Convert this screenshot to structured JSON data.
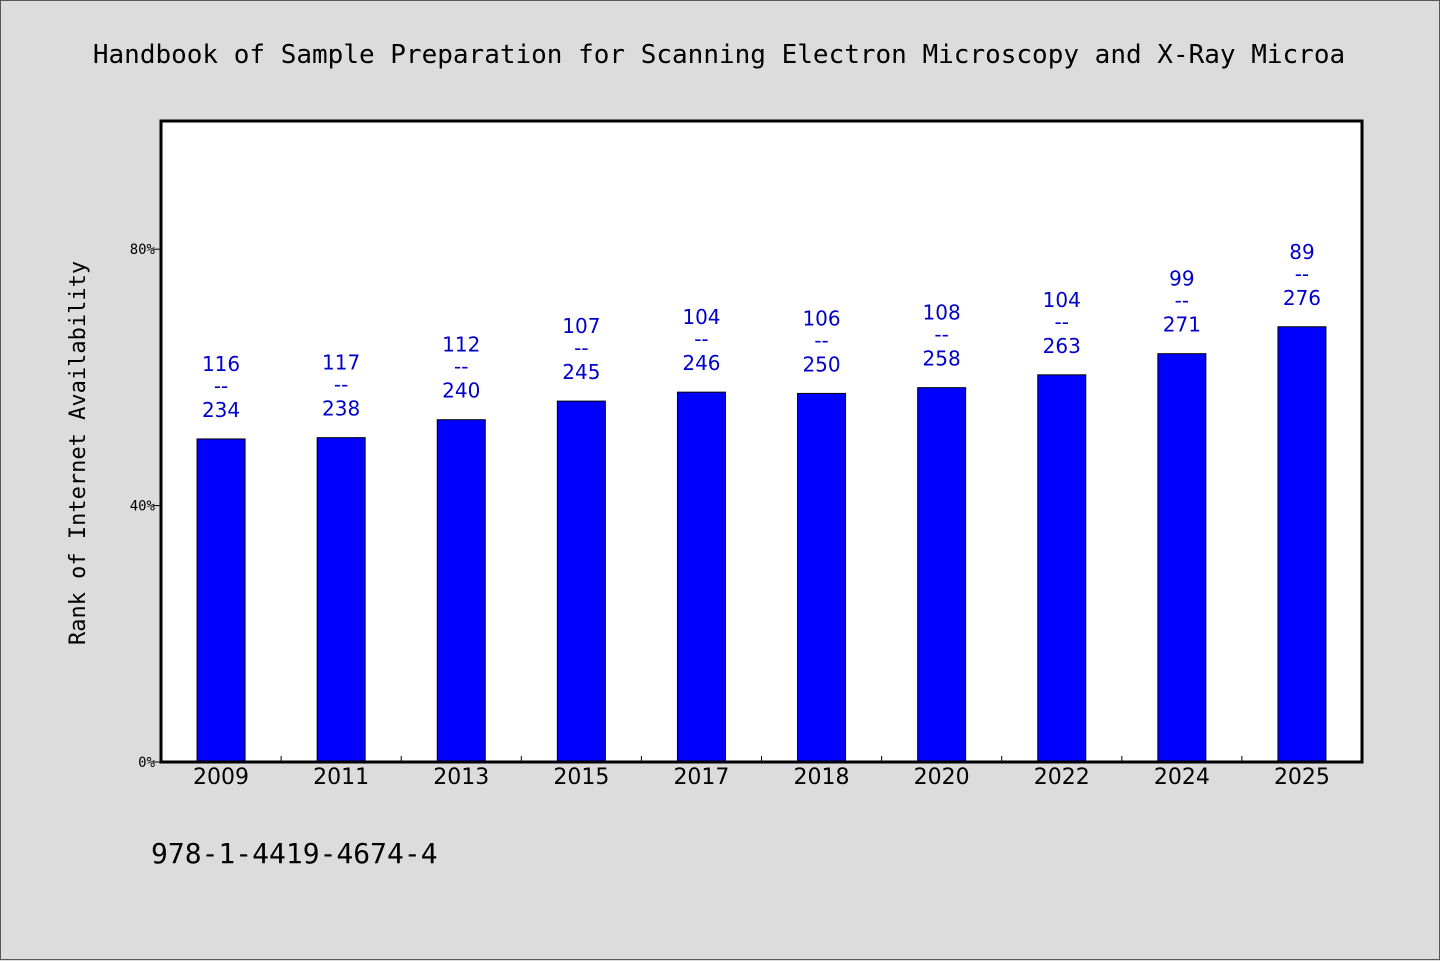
{
  "chart_data": {
    "type": "bar",
    "title": "Handbook of Sample Preparation for Scanning Electron Microscopy and X-Ray Microa",
    "ylabel": "Rank of Internet Availability",
    "xlabel": "",
    "ylim": [
      0,
      100
    ],
    "yticks": [
      0,
      40,
      80
    ],
    "ytick_labels": [
      "0%",
      "40%",
      "80%"
    ],
    "categories": [
      "2009",
      "2011",
      "2013",
      "2015",
      "2017",
      "2018",
      "2020",
      "2022",
      "2024",
      "2025"
    ],
    "values": [
      50.4,
      50.6,
      53.4,
      56.3,
      57.7,
      57.5,
      58.4,
      60.4,
      63.7,
      67.9
    ],
    "rank": [
      "116",
      "117",
      "112",
      "107",
      "104",
      "106",
      "108",
      "104",
      "99",
      "89"
    ],
    "total": [
      "234",
      "238",
      "240",
      "245",
      "246",
      "250",
      "258",
      "263",
      "271",
      "276"
    ],
    "separator": "--",
    "bar_color": "#0000ff",
    "label_color": "#0000cc",
    "grid": false,
    "legend": "none"
  },
  "footer": {
    "isbn": "978-1-4419-4674-4"
  }
}
